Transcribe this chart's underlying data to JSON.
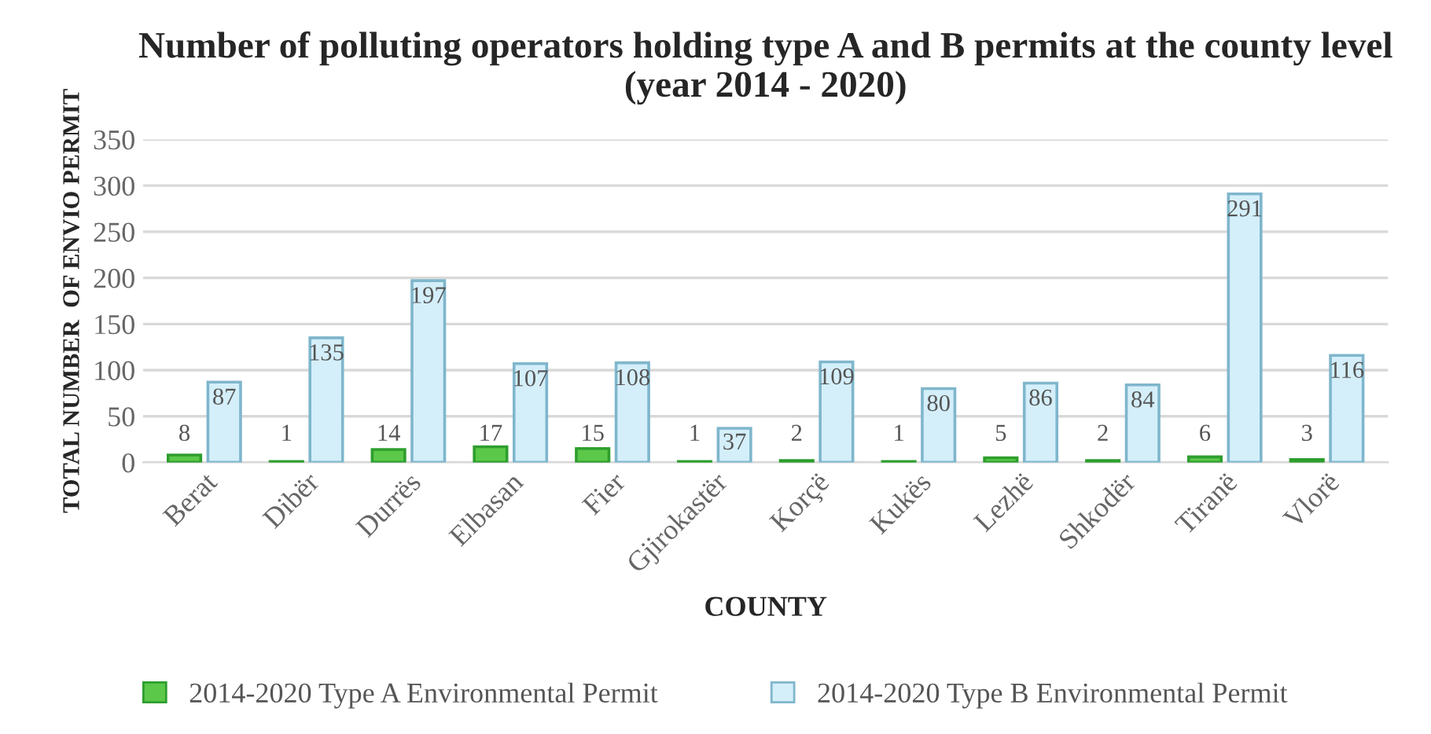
{
  "chart_data": {
    "type": "bar",
    "title": "Number of polluting operators holding type A and B permits at the county level (year 2014 - 2020)",
    "xlabel": "COUNTY",
    "ylabel": "TOTAL NUMBER  OF ENVIO PERMIT",
    "categories": [
      "Berat",
      "Dibër",
      "Durrës",
      "Elbasan",
      "Fier",
      "Gjirokastër",
      "Korçë",
      "Kukës",
      "Lezhë",
      "Shkodër",
      "Tiranë",
      "Vlorë"
    ],
    "series": [
      {
        "name": "2014-2020 Type A Environmental Permit",
        "color": "#5cc84a",
        "values": [
          8,
          1,
          14,
          17,
          15,
          1,
          2,
          1,
          5,
          2,
          6,
          3
        ]
      },
      {
        "name": "2014-2020 Type B Environmental Permit",
        "color": "#d4effa",
        "values": [
          87,
          135,
          197,
          107,
          108,
          37,
          109,
          80,
          86,
          84,
          291,
          116
        ]
      }
    ],
    "ylim": [
      0,
      350
    ],
    "yticks": [
      0,
      50,
      100,
      150,
      200,
      250,
      300,
      350
    ],
    "grid": "y",
    "legend": "bottom",
    "data_labels": true
  }
}
